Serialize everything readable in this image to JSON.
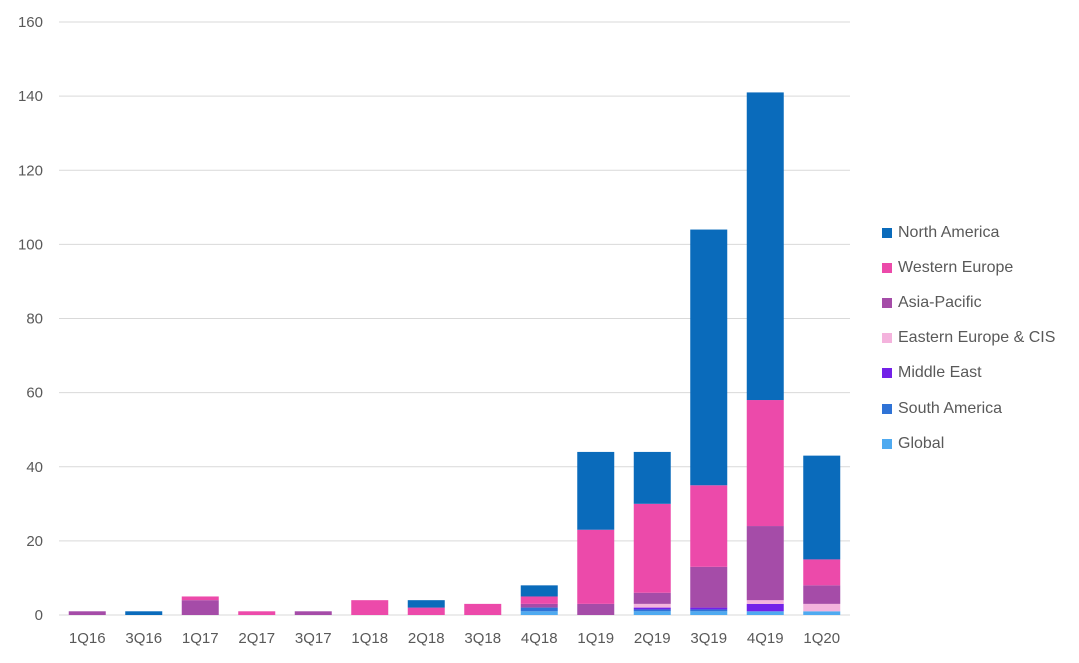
{
  "chart_data": {
    "type": "bar",
    "stacked": true,
    "categories": [
      "1Q16",
      "3Q16",
      "1Q17",
      "2Q17",
      "3Q17",
      "1Q18",
      "2Q18",
      "3Q18",
      "4Q18",
      "1Q19",
      "2Q19",
      "3Q19",
      "4Q19",
      "1Q20"
    ],
    "ylim": [
      0,
      160
    ],
    "yticks": [
      0,
      20,
      40,
      60,
      80,
      100,
      120,
      140,
      160
    ],
    "grid": true,
    "legend_position": "right",
    "series": [
      {
        "name": "Global",
        "color": "#4faaf0",
        "values": [
          0,
          0,
          0,
          0,
          0,
          0,
          0,
          0,
          1,
          0,
          1,
          1,
          1,
          1
        ]
      },
      {
        "name": "South America",
        "color": "#2f73d6",
        "values": [
          0,
          0,
          0,
          0,
          0,
          0,
          0,
          0,
          1,
          0,
          0.5,
          0.5,
          0,
          0
        ]
      },
      {
        "name": "Middle East",
        "color": "#7321e8",
        "values": [
          0,
          0,
          0,
          0,
          0,
          0,
          0,
          0,
          0,
          0,
          0.5,
          0.5,
          2,
          0
        ]
      },
      {
        "name": "Eastern Europe & CIS",
        "color": "#f4b3dd",
        "values": [
          0,
          0,
          0,
          0,
          0,
          0,
          0,
          0,
          0,
          0,
          1,
          0,
          1,
          2
        ]
      },
      {
        "name": "Asia-Pacific",
        "color": "#a54ca8",
        "values": [
          1,
          0,
          4,
          0,
          1,
          0,
          0,
          0,
          1,
          3,
          3,
          11,
          20,
          5
        ]
      },
      {
        "name": "Western Europe",
        "color": "#ec4aaa",
        "values": [
          0,
          0,
          1,
          1,
          0,
          4,
          2,
          3,
          2,
          20,
          24,
          22,
          34,
          7
        ]
      },
      {
        "name": "North America",
        "color": "#0a6bbb",
        "values": [
          0,
          1,
          0,
          0,
          0,
          0,
          2,
          0,
          3,
          21,
          14,
          69,
          83,
          28
        ]
      }
    ]
  }
}
